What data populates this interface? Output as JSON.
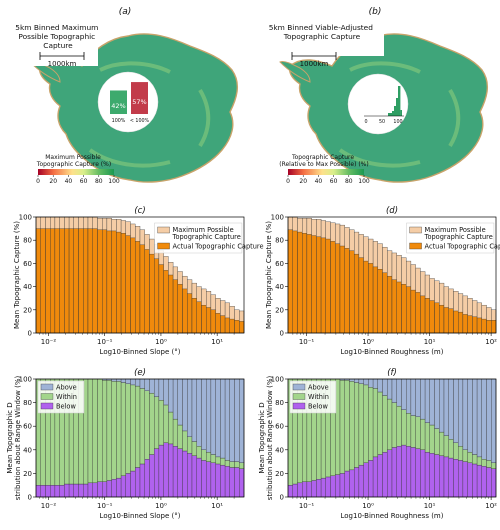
{
  "colors": {
    "peach": "#F5CDA6",
    "orange": "#F08A0C",
    "above": "#9FB3D6",
    "within": "#A3D58C",
    "below": "#B062EE",
    "ant_green": "#3FA57A",
    "pie_green": "#3DAA6D",
    "pie_red": "#C23B4A",
    "cbar": [
      "#a50026",
      "#f46d43",
      "#fee08b",
      "#d9ef8b",
      "#66bd63",
      "#1a9850"
    ]
  },
  "panel_a": {
    "label": "(a)",
    "title": [
      "5km Binned Maximum",
      "Possible Topographic",
      "Capture"
    ],
    "scale": "1000km",
    "inset": {
      "bars": [
        {
          "label": "100%",
          "value": 42,
          "text": "42%"
        },
        {
          "label": "< 100%",
          "value": 57,
          "text": "57%"
        }
      ]
    },
    "colorbar": {
      "label": [
        "Maximum Possible",
        "Topographic Capture (%)"
      ],
      "ticks": [
        "0",
        "20",
        "40",
        "60",
        "80",
        "100"
      ]
    }
  },
  "panel_b": {
    "label": "(b)",
    "title": [
      "5km Binned Viable-Adjusted",
      "Topographic Capture"
    ],
    "scale": "1000km",
    "inset": {
      "ticks": [
        "0",
        "50",
        "100"
      ]
    },
    "colorbar": {
      "label": [
        "Topographic Capture",
        "(Relative to Max Possible) (%)"
      ],
      "ticks": [
        "0",
        "20",
        "40",
        "60",
        "80",
        "100"
      ]
    }
  },
  "chart_data": [
    {
      "panel": "(c)",
      "type": "bar",
      "xlabel": "Log10-Binned Slope (°)",
      "ylabel": "Mean Topographic Capture (%)",
      "xscale": "log",
      "xlim": [
        0.006,
        30
      ],
      "ylim": [
        0,
        100
      ],
      "x_ticks": [
        "10⁻²",
        "10⁻¹",
        "10⁰",
        "10¹"
      ],
      "y_ticks": [
        "0",
        "20",
        "40",
        "60",
        "80",
        "100"
      ],
      "legend": [
        "Maximum Possible Topographic Capture",
        "Actual Topographic Capture"
      ],
      "max_values": [
        100,
        100,
        100,
        100,
        100,
        100,
        100,
        100,
        100,
        100,
        100,
        100,
        100,
        99,
        99,
        99,
        98,
        98,
        97,
        96,
        94,
        92,
        89,
        85,
        81,
        76,
        71,
        66,
        61,
        57,
        53,
        49,
        46,
        43,
        40,
        38,
        36,
        33,
        30,
        28,
        26,
        23,
        20,
        19
      ],
      "actual_values": [
        90,
        90,
        90,
        90,
        90,
        90,
        90,
        90,
        90,
        90,
        90,
        90,
        90,
        89,
        89,
        88,
        88,
        87,
        86,
        84,
        82,
        79,
        76,
        72,
        68,
        64,
        59,
        54,
        50,
        46,
        42,
        38,
        34,
        30,
        27,
        24,
        22,
        20,
        17,
        15,
        13,
        12,
        11,
        10
      ]
    },
    {
      "panel": "(d)",
      "type": "bar",
      "xlabel": "Log10-Binned Roughness (m)",
      "ylabel": "Mean Topographic Capture (%)",
      "xscale": "log",
      "xlim": [
        0.05,
        120
      ],
      "ylim": [
        0,
        100
      ],
      "x_ticks": [
        "10⁻¹",
        "10⁰",
        "10¹",
        "10²"
      ],
      "y_ticks": [
        "0",
        "20",
        "40",
        "60",
        "80",
        "100"
      ],
      "legend": [
        "Maximum Possible Topographic Capture",
        "Actual Topographic Capture"
      ],
      "max_values": [
        100,
        100,
        99,
        99,
        99,
        98,
        98,
        97,
        96,
        95,
        94,
        93,
        91,
        89,
        87,
        85,
        83,
        81,
        79,
        77,
        74,
        71,
        69,
        67,
        65,
        62,
        59,
        56,
        53,
        50,
        47,
        45,
        43,
        40,
        38,
        36,
        34,
        32,
        30,
        28,
        26,
        24,
        22,
        20
      ],
      "actual_values": [
        89,
        88,
        87,
        86,
        85,
        84,
        83,
        82,
        81,
        79,
        77,
        75,
        73,
        71,
        68,
        65,
        62,
        60,
        57,
        55,
        52,
        49,
        46,
        44,
        42,
        40,
        37,
        35,
        32,
        30,
        28,
        26,
        24,
        22,
        21,
        19,
        18,
        16,
        15,
        14,
        13,
        12,
        11,
        11
      ]
    },
    {
      "panel": "(e)",
      "type": "bar",
      "stacked": true,
      "xlabel": "Log10-Binned Slope (°)",
      "ylabel": "Mean Topographic Distribution about Range Window (%)",
      "xscale": "log",
      "xlim": [
        0.006,
        30
      ],
      "ylim": [
        0,
        100
      ],
      "x_ticks": [
        "10⁻²",
        "10⁻¹",
        "10⁰",
        "10¹"
      ],
      "y_ticks": [
        "0",
        "20",
        "40",
        "60",
        "80",
        "100"
      ],
      "legend": [
        "Above",
        "Within",
        "Below"
      ],
      "below": [
        10,
        10,
        10,
        10,
        10,
        10,
        11,
        11,
        11,
        11,
        11,
        12,
        12,
        13,
        13,
        14,
        15,
        16,
        18,
        20,
        22,
        25,
        28,
        32,
        36,
        41,
        44,
        46,
        45,
        43,
        41,
        39,
        37,
        35,
        33,
        31,
        30,
        29,
        28,
        27,
        26,
        25,
        25,
        24
      ],
      "within": [
        90,
        90,
        90,
        90,
        90,
        90,
        89,
        89,
        89,
        89,
        89,
        88,
        88,
        87,
        86,
        85,
        83,
        82,
        79,
        76,
        73,
        69,
        64,
        58,
        52,
        44,
        38,
        32,
        27,
        23,
        20,
        17,
        14,
        12,
        10,
        9,
        8,
        7,
        6,
        6,
        5,
        5,
        5,
        5
      ],
      "above": [
        0,
        0,
        0,
        0,
        0,
        0,
        0,
        0,
        0,
        0,
        0,
        0,
        0,
        0,
        1,
        1,
        2,
        2,
        3,
        4,
        5,
        6,
        8,
        10,
        12,
        15,
        18,
        22,
        28,
        34,
        39,
        44,
        49,
        53,
        57,
        60,
        62,
        64,
        66,
        67,
        69,
        70,
        70,
        71
      ]
    },
    {
      "panel": "(f)",
      "type": "bar",
      "stacked": true,
      "xlabel": "Log10-Binned Roughness (m)",
      "ylabel": "Mean Topographic Distribution about Range Window (%)",
      "xscale": "log",
      "xlim": [
        0.05,
        120
      ],
      "ylim": [
        0,
        100
      ],
      "x_ticks": [
        "10⁻¹",
        "10⁰",
        "10¹",
        "10²"
      ],
      "y_ticks": [
        "0",
        "20",
        "40",
        "60",
        "80",
        "100"
      ],
      "legend": [
        "Above",
        "Within",
        "Below"
      ],
      "below": [
        10,
        11,
        12,
        13,
        13,
        14,
        15,
        16,
        17,
        18,
        19,
        20,
        22,
        23,
        25,
        27,
        29,
        31,
        34,
        36,
        38,
        40,
        42,
        43,
        44,
        43,
        42,
        41,
        40,
        38,
        37,
        36,
        35,
        34,
        33,
        32,
        31,
        30,
        29,
        28,
        27,
        26,
        25,
        24
      ],
      "within": [
        90,
        89,
        88,
        87,
        87,
        86,
        85,
        84,
        83,
        82,
        81,
        79,
        77,
        75,
        72,
        69,
        66,
        62,
        58,
        53,
        48,
        43,
        38,
        34,
        30,
        28,
        27,
        27,
        26,
        25,
        24,
        22,
        20,
        18,
        16,
        14,
        12,
        10,
        9,
        8,
        7,
        6,
        6,
        5
      ],
      "above": [
        0,
        0,
        0,
        0,
        0,
        0,
        0,
        0,
        0,
        0,
        0,
        1,
        1,
        2,
        3,
        4,
        5,
        7,
        8,
        11,
        14,
        17,
        20,
        23,
        26,
        29,
        31,
        32,
        34,
        37,
        39,
        42,
        45,
        48,
        51,
        54,
        57,
        60,
        62,
        64,
        66,
        68,
        69,
        71
      ]
    }
  ]
}
